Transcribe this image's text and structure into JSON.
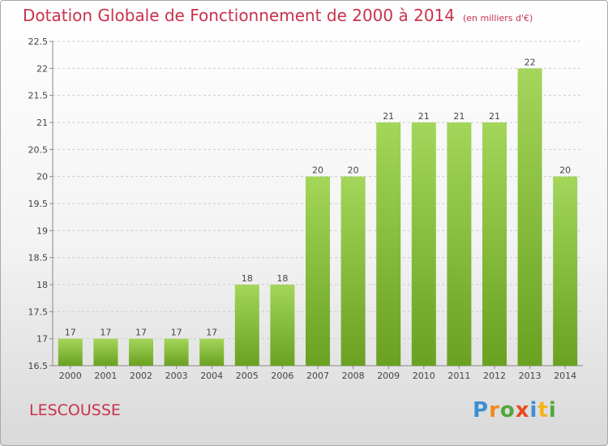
{
  "title": "Dotation Globale de Fonctionnement de 2000 à 2014",
  "unit_note": "(en milliers d'€)",
  "entity_name": "LESCOUSSE",
  "logo_text": "Proxiti",
  "colors": {
    "title": "#c8324c",
    "bar_light": "#a3d65a",
    "bar_dark": "#6aa121",
    "grid": "#cccccc"
  },
  "chart_data": {
    "type": "bar",
    "categories": [
      "2000",
      "2001",
      "2002",
      "2003",
      "2004",
      "2005",
      "2006",
      "2007",
      "2008",
      "2009",
      "2010",
      "2011",
      "2012",
      "2013",
      "2014"
    ],
    "values": [
      17,
      17,
      17,
      17,
      17,
      18,
      18,
      20,
      20,
      21,
      21,
      21,
      21,
      22,
      20
    ],
    "ylim": [
      16.5,
      22.5
    ],
    "yticks": [
      "16.5",
      "17",
      "17.5",
      "18",
      "18.5",
      "19",
      "19.5",
      "20",
      "20.5",
      "21",
      "21.5",
      "22",
      "22.5"
    ],
    "grid": "horizontal dashed",
    "legend": "none"
  }
}
